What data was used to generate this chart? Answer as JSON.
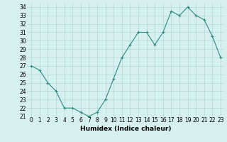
{
  "x": [
    0,
    1,
    2,
    3,
    4,
    5,
    6,
    7,
    8,
    9,
    10,
    11,
    12,
    13,
    14,
    15,
    16,
    17,
    18,
    19,
    20,
    21,
    22,
    23
  ],
  "y": [
    27,
    26.5,
    25,
    24,
    22,
    22,
    21.5,
    21,
    21.5,
    23,
    25.5,
    28,
    29.5,
    31,
    31,
    29.5,
    31,
    33.5,
    33,
    34,
    33,
    32.5,
    30.5,
    28
  ],
  "line_color": "#2e8b7a",
  "marker_color": "#2e8b7a",
  "bg_color": "#d6f0f0",
  "grid_color": "#b0d8d8",
  "xlabel": "Humidex (Indice chaleur)",
  "ylim": [
    21,
    34.5
  ],
  "yticks": [
    21,
    22,
    23,
    24,
    25,
    26,
    27,
    28,
    29,
    30,
    31,
    32,
    33,
    34
  ],
  "xtick_labels": [
    "0",
    "1",
    "2",
    "3",
    "4",
    "5",
    "6",
    "7",
    "8",
    "9",
    "10",
    "11",
    "12",
    "13",
    "14",
    "15",
    "16",
    "17",
    "18",
    "19",
    "20",
    "21",
    "22",
    "23"
  ],
  "tick_fontsize": 5.5,
  "label_fontsize": 6.5
}
